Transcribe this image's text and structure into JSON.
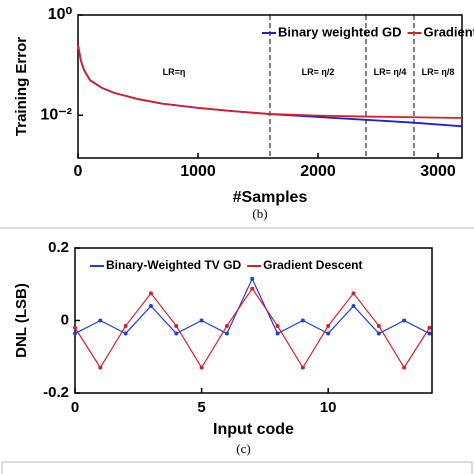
{
  "chart_data": [
    {
      "type": "line",
      "y_label": "Training Error",
      "x_label": "#Samples",
      "caption": "(b)",
      "log_y": true,
      "markers": false,
      "x": [
        0,
        25,
        50,
        100,
        200,
        300,
        500,
        700,
        1000,
        1300,
        1600,
        2000,
        2400,
        2800,
        3200
      ],
      "series": [
        {
          "name": "Binary weighted GD",
          "color": "#1f1fd6",
          "values": [
            0.25,
            0.12,
            0.08,
            0.05,
            0.035,
            0.028,
            0.021,
            0.017,
            0.014,
            0.012,
            0.0105,
            0.0092,
            0.0081,
            0.0071,
            0.006
          ]
        },
        {
          "name": "Gradient descent",
          "color": "#d81f2a",
          "values": [
            0.25,
            0.12,
            0.08,
            0.05,
            0.035,
            0.028,
            0.021,
            0.017,
            0.014,
            0.012,
            0.0106,
            0.0098,
            0.0094,
            0.0091,
            0.0088
          ]
        }
      ],
      "xlim": [
        0,
        3200
      ],
      "xticks": [
        0,
        1000,
        2000,
        3000
      ],
      "ylim": [
        0.0014,
        1
      ],
      "yticks": [
        {
          "value": 1,
          "label": "10⁰"
        },
        {
          "value": 0.01,
          "label": "10⁻²"
        }
      ],
      "vlines": [
        1600,
        2400,
        2800
      ],
      "annotations": [
        {
          "text": "LR=η",
          "x": 800,
          "y": 0.07
        },
        {
          "text": "LR= η/2",
          "x": 2000,
          "y": 0.07
        },
        {
          "text": "LR= η/4",
          "x": 2600,
          "y": 0.07
        },
        {
          "text": "LR= η/8",
          "x": 3000,
          "y": 0.07
        }
      ]
    },
    {
      "type": "line",
      "y_label": "DNL (LSB)",
      "x_label": "Input code",
      "caption": "(c)",
      "log_y": false,
      "markers": true,
      "x": [
        0,
        1,
        2,
        3,
        4,
        5,
        6,
        7,
        8,
        9,
        10,
        11,
        12,
        13,
        14
      ],
      "series": [
        {
          "name": "Binary-Weighted TV GD",
          "color": "#1f3fd6",
          "values": [
            -0.036,
            0,
            -0.036,
            0.04,
            -0.036,
            0,
            -0.036,
            0.115,
            -0.036,
            0,
            -0.036,
            0.04,
            -0.036,
            0,
            -0.036
          ]
        },
        {
          "name": "Gradient Descent",
          "color": "#d81f2a",
          "values": [
            -0.02,
            -0.13,
            -0.015,
            0.075,
            -0.015,
            -0.13,
            -0.015,
            0.088,
            -0.015,
            -0.13,
            -0.015,
            0.075,
            -0.015,
            -0.13,
            -0.02
          ]
        }
      ],
      "xlim": [
        0,
        14.1
      ],
      "xticks": [
        0,
        5,
        10
      ],
      "ylim": [
        -0.2,
        0.2
      ],
      "yticks": [
        0.2,
        0,
        -0.2
      ]
    }
  ]
}
